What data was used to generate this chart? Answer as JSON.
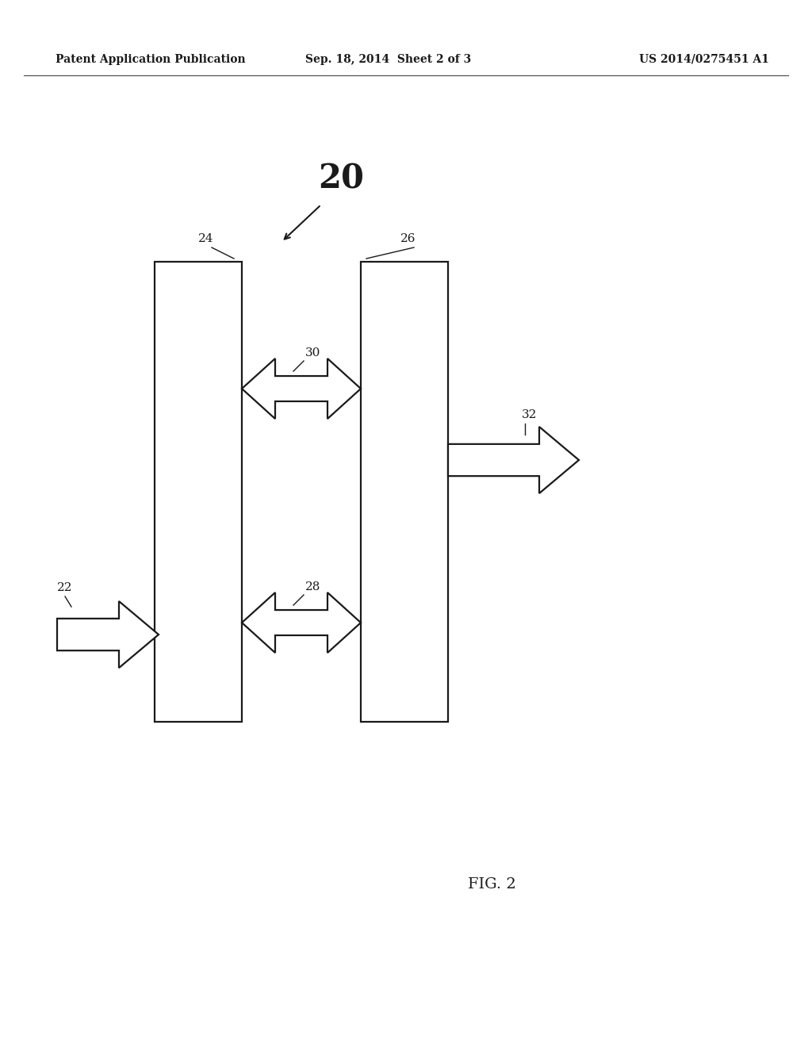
{
  "bg_color": "#ffffff",
  "header_left": "Patent Application Publication",
  "header_mid": "Sep. 18, 2014  Sheet 2 of 3",
  "header_right": "US 2014/0275451 A1",
  "fig_label": "FIG. 2",
  "main_label": "20",
  "label_24": "24",
  "label_26": "26",
  "label_30": "30",
  "label_28": "28",
  "label_22": "22",
  "label_32": "32",
  "line_color": "#1a1a1a",
  "lw": 1.6
}
